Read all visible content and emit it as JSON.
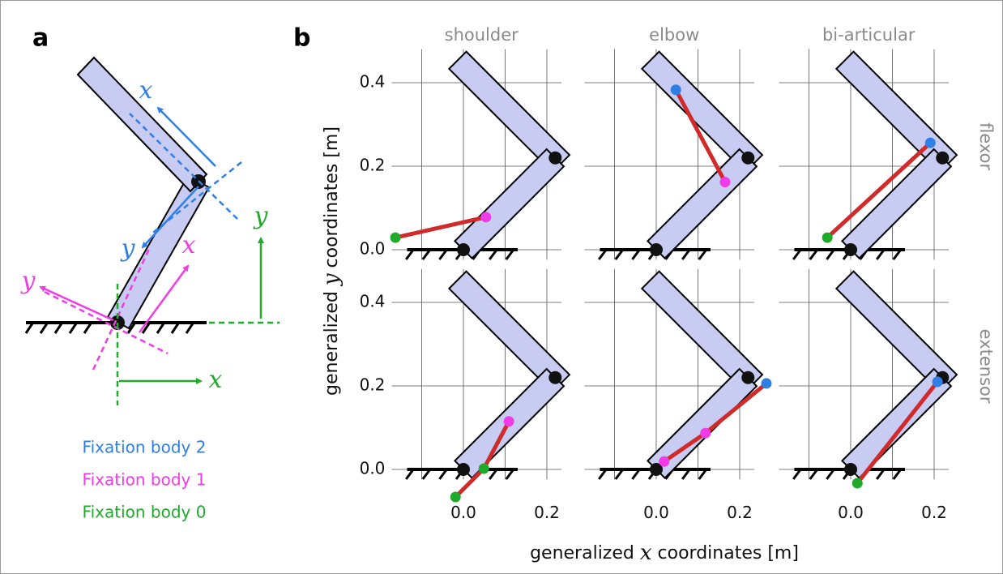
{
  "panel_a": {
    "label": "a",
    "frames": [
      {
        "name": "Fixation body 2",
        "color": "#2f7fe6",
        "x_label": "x",
        "y_label": "y"
      },
      {
        "name": "Fixation body 1",
        "color": "#f03ce6",
        "x_label": "x",
        "y_label": "y"
      },
      {
        "name": "Fixation body 0",
        "color": "#1faa2a",
        "x_label": "x",
        "y_label": "y"
      }
    ]
  },
  "panel_b": {
    "label": "b",
    "columns": [
      "shoulder",
      "elbow",
      "bi-articular"
    ],
    "rows": [
      "flexor",
      "extensor"
    ],
    "xlabel": [
      "generalized ",
      "x",
      " coordinates [m]"
    ],
    "ylabel": [
      "generalized ",
      "y",
      " coordinates [m]"
    ]
  },
  "arm": {
    "x": [
      0,
      0.22,
      0
    ],
    "y": [
      0,
      0.22,
      0.44
    ]
  },
  "chart_data": [
    {
      "type": "line",
      "x": [
        -0.163,
        0.054
      ],
      "values": [
        0.029,
        0.078
      ],
      "point_colors": [
        "#1faa2a",
        "#f03ce6"
      ],
      "line_color": "#d02a2a",
      "xlim": [
        -0.172,
        0.235
      ],
      "ylim": [
        -0.024,
        0.48
      ],
      "xgrid": [
        -0.1,
        0,
        0.1,
        0.2
      ],
      "ygrid": [
        0,
        0.2,
        0.4
      ],
      "yticks": [
        {
          "value": 0,
          "label": "0.0"
        },
        0.2,
        0.4
      ]
    },
    {
      "type": "line",
      "x": [
        0.047,
        0.165
      ],
      "values": [
        0.383,
        0.162
      ],
      "point_colors": [
        "#2f7fe6",
        "#f03ce6"
      ],
      "line_color": "#d02a2a",
      "xlim": [
        -0.172,
        0.235
      ],
      "ylim": [
        -0.024,
        0.48
      ],
      "xgrid": [
        -0.1,
        0,
        0.1,
        0.2
      ],
      "ygrid": [
        0,
        0.2,
        0.4
      ]
    },
    {
      "type": "line",
      "x": [
        -0.056,
        0.191
      ],
      "values": [
        0.029,
        0.256
      ],
      "point_colors": [
        "#1faa2a",
        "#2f7fe6"
      ],
      "line_color": "#d02a2a",
      "xlim": [
        -0.172,
        0.235
      ],
      "ylim": [
        -0.024,
        0.48
      ],
      "xgrid": [
        -0.1,
        0,
        0.1,
        0.2
      ],
      "ygrid": [
        0,
        0.2,
        0.4
      ]
    },
    {
      "type": "line",
      "x": [
        -0.019,
        0.049,
        0.109
      ],
      "values": [
        -0.066,
        0.002,
        0.115
      ],
      "point_colors": [
        "#1faa2a",
        "#1faa2a",
        "#f03ce6"
      ],
      "line_color": "#d02a2a",
      "xlim": [
        -0.172,
        0.235
      ],
      "ylim": [
        -0.024,
        0.48
      ],
      "xgrid": [
        -0.1,
        0,
        0.1,
        0.2
      ],
      "ygrid": [
        0,
        0.2,
        0.4
      ],
      "xticks": [
        {
          "value": 0,
          "label": "0.0"
        },
        0.2
      ],
      "yticks": [
        {
          "value": 0,
          "label": "0.0"
        },
        0.2,
        0.4
      ]
    },
    {
      "type": "line",
      "x": [
        0.019,
        0.118,
        0.264
      ],
      "values": [
        0.019,
        0.087,
        0.206
      ],
      "point_colors": [
        "#f03ce6",
        "#f03ce6",
        "#2f7fe6"
      ],
      "line_color": "#d02a2a",
      "xlim": [
        -0.172,
        0.235
      ],
      "ylim": [
        -0.024,
        0.48
      ],
      "xgrid": [
        -0.1,
        0,
        0.1,
        0.2
      ],
      "ygrid": [
        0,
        0.2,
        0.4
      ],
      "xticks": [
        {
          "value": 0,
          "label": "0.0"
        },
        0.2
      ]
    },
    {
      "type": "line",
      "x": [
        0.016,
        0.208
      ],
      "values": [
        -0.033,
        0.21
      ],
      "point_colors": [
        "#1faa2a",
        "#2f7fe6"
      ],
      "line_color": "#d02a2a",
      "xlim": [
        -0.172,
        0.235
      ],
      "ylim": [
        -0.024,
        0.48
      ],
      "xgrid": [
        -0.1,
        0,
        0.1,
        0.2
      ],
      "ygrid": [
        0,
        0.2,
        0.4
      ],
      "xticks": [
        {
          "value": 0,
          "label": "0.0"
        },
        0.2
      ]
    }
  ]
}
